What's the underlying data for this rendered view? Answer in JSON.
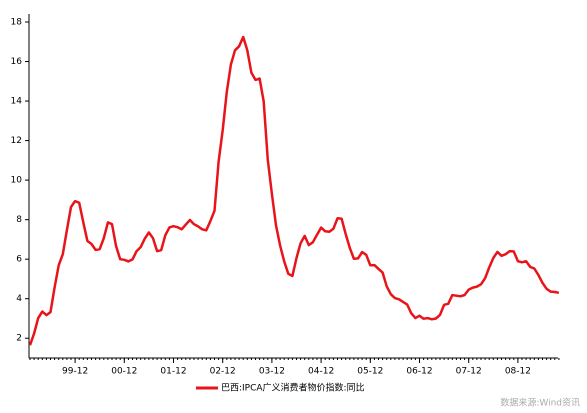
{
  "chart_data": {
    "type": "line",
    "categories": [
      null,
      null,
      null,
      null,
      null,
      null,
      null,
      null,
      null,
      null,
      null,
      "99-12",
      null,
      null,
      null,
      null,
      null,
      null,
      null,
      null,
      null,
      null,
      null,
      "00-12",
      null,
      null,
      null,
      null,
      null,
      null,
      null,
      null,
      null,
      null,
      null,
      "01-12",
      null,
      null,
      null,
      null,
      null,
      null,
      null,
      null,
      null,
      null,
      null,
      "02-12",
      null,
      null,
      null,
      null,
      null,
      null,
      null,
      null,
      null,
      null,
      null,
      "03-12",
      null,
      null,
      null,
      null,
      null,
      null,
      null,
      null,
      null,
      null,
      null,
      "04-12",
      null,
      null,
      null,
      null,
      null,
      null,
      null,
      null,
      null,
      null,
      null,
      "05-12",
      null,
      null,
      null,
      null,
      null,
      null,
      null,
      null,
      null,
      null,
      null,
      "06-12",
      null,
      null,
      null,
      null,
      null,
      null,
      null,
      null,
      null,
      null,
      null,
      "07-12",
      null,
      null,
      null,
      null,
      null,
      null,
      null,
      null,
      null,
      null,
      null,
      "08-12",
      null,
      null,
      null,
      null,
      null,
      null,
      null,
      null,
      null,
      null
    ],
    "series": [
      {
        "name": "巴西:IPCA广义消费者物价指数:同比",
        "color": "#e8141a",
        "values": [
          1.65,
          2.24,
          3.02,
          3.35,
          3.17,
          3.32,
          4.57,
          5.69,
          6.25,
          7.47,
          8.64,
          8.94,
          8.85,
          7.86,
          6.92,
          6.77,
          6.47,
          6.51,
          7.06,
          7.86,
          7.77,
          6.65,
          6.0,
          5.97,
          5.89,
          5.99,
          6.41,
          6.61,
          7.04,
          7.35,
          7.06,
          6.41,
          6.46,
          7.21,
          7.61,
          7.67,
          7.62,
          7.51,
          7.75,
          7.98,
          7.77,
          7.66,
          7.51,
          7.46,
          7.93,
          8.45,
          10.93,
          12.53,
          14.47,
          15.85,
          16.57,
          16.77,
          17.24,
          16.57,
          15.43,
          15.07,
          15.14,
          13.98,
          11.02,
          9.3,
          7.71,
          6.69,
          5.89,
          5.26,
          5.15,
          6.06,
          6.81,
          7.18,
          6.71,
          6.86,
          7.24,
          7.6,
          7.41,
          7.39,
          7.54,
          8.07,
          8.05,
          7.27,
          6.57,
          6.02,
          6.04,
          6.36,
          6.22,
          5.69,
          5.7,
          5.51,
          5.32,
          4.63,
          4.23,
          4.03,
          3.97,
          3.84,
          3.7,
          3.26,
          3.02,
          3.14,
          2.99,
          3.02,
          2.96,
          3.0,
          3.18,
          3.69,
          3.74,
          4.18,
          4.15,
          4.12,
          4.19,
          4.46,
          4.56,
          4.61,
          4.73,
          5.04,
          5.58,
          6.06,
          6.37,
          6.17,
          6.25,
          6.41,
          6.39,
          5.9,
          5.84,
          5.9,
          5.61,
          5.53,
          5.2,
          4.8,
          4.5,
          4.36,
          4.34,
          4.3
        ]
      }
    ],
    "ylim": [
      1,
      18
    ],
    "yticks": [
      2,
      4,
      6,
      8,
      10,
      12,
      14,
      16,
      18
    ],
    "legend": "bottom",
    "grid": false,
    "source": "数据来源:Wind资讯"
  }
}
